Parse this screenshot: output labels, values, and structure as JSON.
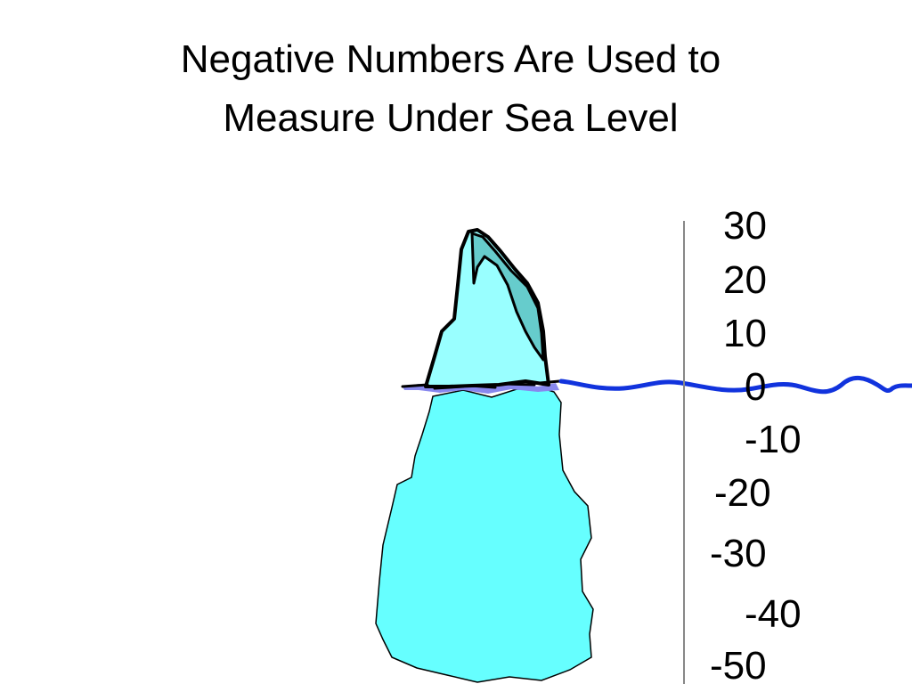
{
  "slide": {
    "title_line1": "Negative Numbers Are Used to",
    "title_line2": "Measure Under Sea Level"
  },
  "scale": {
    "labels": [
      "30",
      "20",
      "10",
      "0",
      "-10",
      "-20",
      "-30",
      "-40",
      "-50"
    ]
  },
  "colors": {
    "ice_above": "#99ffff",
    "ice_shadow": "#66cccc",
    "ice_below": "#66ffff",
    "water_line": "#1133dd",
    "foam": "#8888ee",
    "scale_line": "#888888"
  }
}
